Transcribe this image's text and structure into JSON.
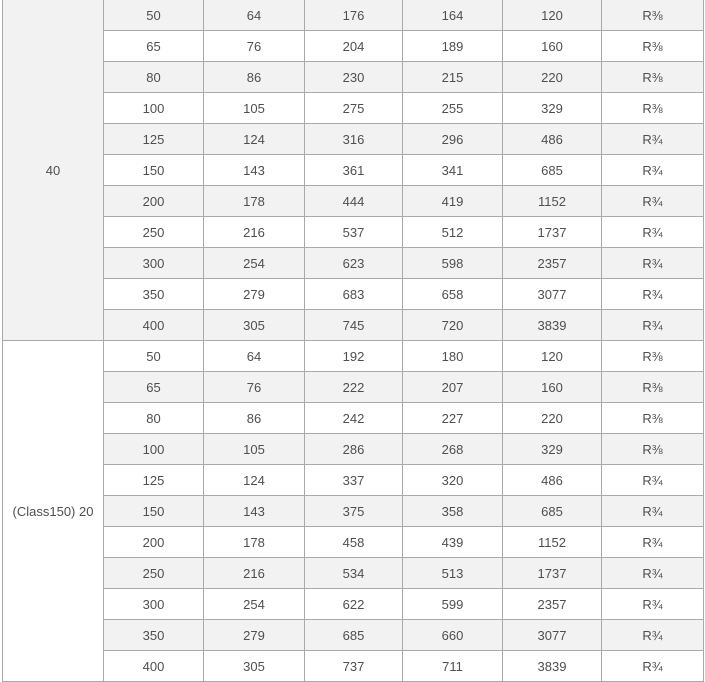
{
  "table": {
    "description": "dimension-table",
    "columns_count": 7,
    "groups": [
      {
        "label": "40",
        "rows": [
          [
            "50",
            "64",
            "176",
            "164",
            "120",
            "R⅜"
          ],
          [
            "65",
            "76",
            "204",
            "189",
            "160",
            "R⅜"
          ],
          [
            "80",
            "86",
            "230",
            "215",
            "220",
            "R⅜"
          ],
          [
            "100",
            "105",
            "275",
            "255",
            "329",
            "R⅜"
          ],
          [
            "125",
            "124",
            "316",
            "296",
            "486",
            "R¾"
          ],
          [
            "150",
            "143",
            "361",
            "341",
            "685",
            "R¾"
          ],
          [
            "200",
            "178",
            "444",
            "419",
            "1152",
            "R¾"
          ],
          [
            "250",
            "216",
            "537",
            "512",
            "1737",
            "R¾"
          ],
          [
            "300",
            "254",
            "623",
            "598",
            "2357",
            "R¾"
          ],
          [
            "350",
            "279",
            "683",
            "658",
            "3077",
            "R¾"
          ],
          [
            "400",
            "305",
            "745",
            "720",
            "3839",
            "R¾"
          ]
        ]
      },
      {
        "label": "(Class150) 20",
        "rows": [
          [
            "50",
            "64",
            "192",
            "180",
            "120",
            "R⅜"
          ],
          [
            "65",
            "76",
            "222",
            "207",
            "160",
            "R⅜"
          ],
          [
            "80",
            "86",
            "242",
            "227",
            "220",
            "R⅜"
          ],
          [
            "100",
            "105",
            "286",
            "268",
            "329",
            "R⅜"
          ],
          [
            "125",
            "124",
            "337",
            "320",
            "486",
            "R¾"
          ],
          [
            "150",
            "143",
            "375",
            "358",
            "685",
            "R¾"
          ],
          [
            "200",
            "178",
            "458",
            "439",
            "1152",
            "R¾"
          ],
          [
            "250",
            "216",
            "534",
            "513",
            "1737",
            "R¾"
          ],
          [
            "300",
            "254",
            "622",
            "599",
            "2357",
            "R¾"
          ],
          [
            "350",
            "279",
            "685",
            "660",
            "3077",
            "R¾"
          ],
          [
            "400",
            "305",
            "737",
            "711",
            "3839",
            "R¾"
          ]
        ]
      }
    ]
  },
  "colors": {
    "stripe": "#f2f2f2",
    "border": "#a9a9a9",
    "text": "#4f4f4f",
    "background": "#ffffff"
  }
}
